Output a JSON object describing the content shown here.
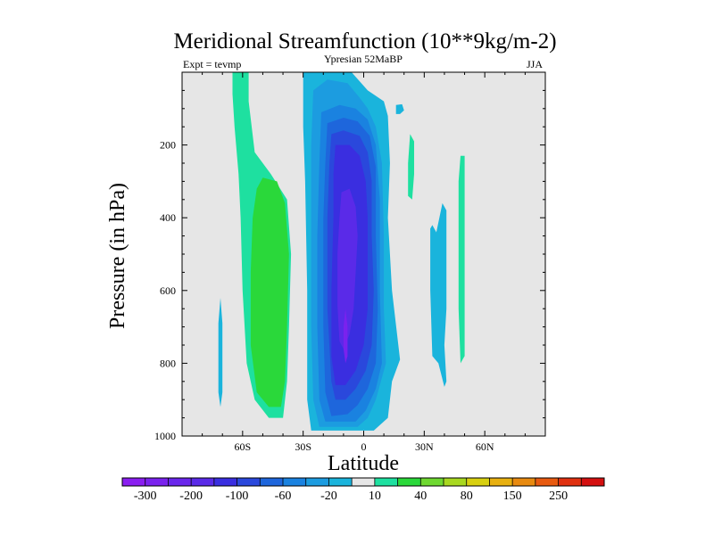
{
  "chart_data": {
    "type": "contour",
    "title": "Meridional Streamfunction (10**9kg/m-2)",
    "left_label": "Expt = tevmp",
    "center_label": "Ypresian  52MaBP",
    "right_label": "JJA",
    "xlabel": "Latitude",
    "ylabel": "Pressure (in hPa)",
    "xlim": [
      -90,
      90
    ],
    "ylim": [
      0,
      1000
    ],
    "x_ticks": [
      {
        "value": -60,
        "label": "60S"
      },
      {
        "value": -30,
        "label": "30S"
      },
      {
        "value": 0,
        "label": "0"
      },
      {
        "value": 30,
        "label": "30N"
      },
      {
        "value": 60,
        "label": "60N"
      }
    ],
    "y_ticks": [
      {
        "value": 200,
        "label": "200"
      },
      {
        "value": 400,
        "label": "400"
      },
      {
        "value": 600,
        "label": "600"
      },
      {
        "value": 800,
        "label": "800"
      },
      {
        "value": 1000,
        "label": "1000"
      }
    ],
    "background_color": "#e6e6e6",
    "colorbar": {
      "colors": [
        "#8a1ef0",
        "#7a22ee",
        "#6a26ec",
        "#5a2ae8",
        "#3a2ee0",
        "#2a48dc",
        "#1e66dc",
        "#1a82e0",
        "#1c9ce0",
        "#1ab4dc",
        "#e6e6e6",
        "#1ee0a0",
        "#2ad83a",
        "#6ed830",
        "#a8d820",
        "#d8d010",
        "#e8b010",
        "#e88a10",
        "#e85a10",
        "#e03010",
        "#d41010"
      ],
      "labels": [
        {
          "after_index": 0,
          "text": "-300"
        },
        {
          "after_index": 2,
          "text": "-200"
        },
        {
          "after_index": 4,
          "text": "-100"
        },
        {
          "after_index": 6,
          "text": "-60"
        },
        {
          "after_index": 8,
          "text": "-20"
        },
        {
          "after_index": 10,
          "text": "10"
        },
        {
          "after_index": 12,
          "text": "40"
        },
        {
          "after_index": 14,
          "text": "80"
        },
        {
          "after_index": 16,
          "text": "150"
        },
        {
          "after_index": 18,
          "text": "250"
        }
      ]
    },
    "regions": [
      {
        "name": "sh-cell-outer",
        "color": "#1ee0a0",
        "points": [
          [
            -65,
            0
          ],
          [
            -57,
            0
          ],
          [
            -57,
            80
          ],
          [
            -54,
            220
          ],
          [
            -46,
            280
          ],
          [
            -38,
            350
          ],
          [
            -36,
            500
          ],
          [
            -37,
            700
          ],
          [
            -38,
            850
          ],
          [
            -40,
            950
          ],
          [
            -47,
            950
          ],
          [
            -54,
            900
          ],
          [
            -58,
            800
          ],
          [
            -60,
            600
          ],
          [
            -61,
            400
          ],
          [
            -62,
            280
          ],
          [
            -64,
            150
          ],
          [
            -65,
            60
          ]
        ]
      },
      {
        "name": "sh-cell-inner",
        "color": "#2ad83a",
        "points": [
          [
            -50,
            290
          ],
          [
            -43,
            300
          ],
          [
            -39,
            360
          ],
          [
            -37,
            500
          ],
          [
            -38,
            700
          ],
          [
            -39,
            850
          ],
          [
            -41,
            920
          ],
          [
            -47,
            920
          ],
          [
            -53,
            880
          ],
          [
            -56,
            750
          ],
          [
            -56,
            550
          ],
          [
            -55,
            400
          ],
          [
            -53,
            320
          ]
        ]
      },
      {
        "name": "sh-highlat-sliver",
        "color": "#1ab4dc",
        "points": [
          [
            -71,
            620
          ],
          [
            -70,
            690
          ],
          [
            -70,
            800
          ],
          [
            -70,
            880
          ],
          [
            -71,
            920
          ],
          [
            -72,
            880
          ],
          [
            -72,
            800
          ],
          [
            -72,
            690
          ]
        ]
      },
      {
        "name": "hadley-neg-10",
        "color": "#1ab4dc",
        "points": [
          [
            -30,
            0
          ],
          [
            -6,
            0
          ],
          [
            2,
            50
          ],
          [
            10,
            80
          ],
          [
            12,
            120
          ],
          [
            13,
            250
          ],
          [
            12,
            400
          ],
          [
            14,
            600
          ],
          [
            18,
            790
          ],
          [
            14,
            850
          ],
          [
            12,
            950
          ],
          [
            5,
            985
          ],
          [
            -26,
            985
          ],
          [
            -28,
            900
          ],
          [
            -28,
            600
          ],
          [
            -29,
            300
          ],
          [
            -30,
            150
          ]
        ]
      },
      {
        "name": "hadley-neg-20",
        "color": "#1c9ce0",
        "points": [
          [
            -25,
            50
          ],
          [
            -18,
            20
          ],
          [
            -8,
            30
          ],
          [
            -2,
            70
          ],
          [
            2,
            100
          ],
          [
            6,
            150
          ],
          [
            9,
            250
          ],
          [
            10,
            450
          ],
          [
            10,
            650
          ],
          [
            11,
            800
          ],
          [
            6,
            900
          ],
          [
            2,
            950
          ],
          [
            -3,
            975
          ],
          [
            -22,
            975
          ],
          [
            -25,
            900
          ],
          [
            -26,
            700
          ],
          [
            -26,
            450
          ],
          [
            -26,
            200
          ]
        ]
      },
      {
        "name": "hadley-neg-40",
        "color": "#1a82e0",
        "points": [
          [
            -21,
            110
          ],
          [
            -12,
            90
          ],
          [
            -4,
            100
          ],
          [
            2,
            130
          ],
          [
            6,
            200
          ],
          [
            8,
            350
          ],
          [
            8,
            600
          ],
          [
            9,
            800
          ],
          [
            6,
            870
          ],
          [
            1,
            930
          ],
          [
            -4,
            960
          ],
          [
            -19,
            960
          ],
          [
            -22,
            900
          ],
          [
            -23,
            700
          ],
          [
            -23,
            450
          ],
          [
            -22,
            250
          ]
        ]
      },
      {
        "name": "hadley-neg-60",
        "color": "#1e66dc",
        "points": [
          [
            -18,
            140
          ],
          [
            -10,
            125
          ],
          [
            -3,
            135
          ],
          [
            3,
            175
          ],
          [
            6,
            260
          ],
          [
            6,
            450
          ],
          [
            7,
            650
          ],
          [
            6,
            800
          ],
          [
            2,
            870
          ],
          [
            -3,
            915
          ],
          [
            -8,
            940
          ],
          [
            -16,
            945
          ],
          [
            -19,
            880
          ],
          [
            -20,
            700
          ],
          [
            -20,
            400
          ],
          [
            -19,
            250
          ]
        ]
      },
      {
        "name": "hadley-neg-100",
        "color": "#2a48dc",
        "points": [
          [
            -16,
            170
          ],
          [
            -10,
            160
          ],
          [
            -2,
            175
          ],
          [
            2,
            220
          ],
          [
            4,
            300
          ],
          [
            4,
            450
          ],
          [
            5,
            600
          ],
          [
            4,
            750
          ],
          [
            1,
            820
          ],
          [
            -4,
            870
          ],
          [
            -9,
            900
          ],
          [
            -14,
            900
          ],
          [
            -16,
            850
          ],
          [
            -18,
            650
          ],
          [
            -18,
            400
          ],
          [
            -17,
            250
          ]
        ]
      },
      {
        "name": "hadley-neg-200",
        "color": "#3a2ee0",
        "points": [
          [
            -14,
            200
          ],
          [
            -7,
            200
          ],
          [
            -2,
            230
          ],
          [
            1,
            300
          ],
          [
            2,
            400
          ],
          [
            2,
            500
          ],
          [
            2,
            650
          ],
          [
            0,
            750
          ],
          [
            -4,
            820
          ],
          [
            -9,
            860
          ],
          [
            -14,
            860
          ],
          [
            -16,
            780
          ],
          [
            -16,
            600
          ],
          [
            -15,
            400
          ],
          [
            -15,
            280
          ]
        ]
      },
      {
        "name": "hadley-neg-250",
        "color": "#5a2ae8",
        "points": [
          [
            -11,
            330
          ],
          [
            -7,
            320
          ],
          [
            -4,
            370
          ],
          [
            -3,
            450
          ],
          [
            -4,
            550
          ],
          [
            -5,
            650
          ],
          [
            -7,
            720
          ],
          [
            -10,
            760
          ],
          [
            -12,
            740
          ],
          [
            -13,
            640
          ],
          [
            -13,
            500
          ],
          [
            -12,
            400
          ]
        ]
      },
      {
        "name": "hadley-neg-300",
        "color": "#7a22ee",
        "points": [
          [
            -9,
            650
          ],
          [
            -8,
            700
          ],
          [
            -8,
            780
          ],
          [
            -9,
            800
          ],
          [
            -10,
            760
          ],
          [
            -10,
            700
          ]
        ]
      },
      {
        "name": "upper-blob",
        "color": "#1ab4dc",
        "points": [
          [
            16,
            90
          ],
          [
            19,
            88
          ],
          [
            20,
            105
          ],
          [
            18,
            115
          ],
          [
            16,
            115
          ]
        ]
      },
      {
        "name": "nh-sliver-1",
        "color": "#1ee0a0",
        "points": [
          [
            23,
            170
          ],
          [
            25,
            190
          ],
          [
            25,
            280
          ],
          [
            24,
            350
          ],
          [
            22,
            340
          ],
          [
            22,
            250
          ]
        ]
      },
      {
        "name": "nh-cell-neg",
        "color": "#1ab4dc",
        "points": [
          [
            34,
            420
          ],
          [
            36,
            440
          ],
          [
            39,
            360
          ],
          [
            41,
            380
          ],
          [
            41,
            500
          ],
          [
            41,
            650
          ],
          [
            40,
            750
          ],
          [
            41,
            850
          ],
          [
            40,
            865
          ],
          [
            37,
            800
          ],
          [
            34,
            780
          ],
          [
            33,
            600
          ],
          [
            33,
            430
          ]
        ]
      },
      {
        "name": "nh-sliver-2",
        "color": "#1ee0a0",
        "points": [
          [
            48,
            230
          ],
          [
            50,
            230
          ],
          [
            50,
            400
          ],
          [
            50,
            600
          ],
          [
            50,
            780
          ],
          [
            48,
            800
          ],
          [
            47,
            650
          ],
          [
            47,
            450
          ],
          [
            47,
            300
          ]
        ]
      }
    ]
  }
}
